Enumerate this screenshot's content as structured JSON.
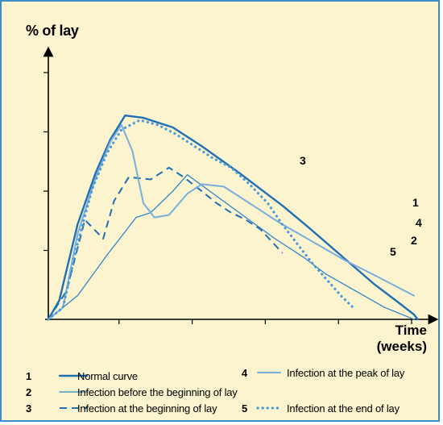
{
  "ylabel": "% of lay",
  "xlabel_line1": "Time",
  "xlabel_line2": "(weeks)",
  "colors": {
    "background": "#fbf4cf",
    "border": "#3a8fc9",
    "dark_blue": "#1f6fb2",
    "light_blue": "#79aede",
    "medium_blue": "#2f86c6",
    "dotted_blue": "#4a9ad6"
  },
  "chart_data": {
    "type": "line",
    "title": "",
    "xlabel": "Time (weeks)",
    "ylabel": "% of lay",
    "xlim": [
      0,
      10
    ],
    "ylim": [
      0,
      100
    ],
    "grid": false,
    "x_ticks": 5,
    "y_ticks": 5,
    "legend_position": "bottom",
    "series": [
      {
        "id": "1",
        "name": "Normal curve",
        "style": "solid-thick",
        "color": "#1f6fb2",
        "points": [
          [
            0,
            0
          ],
          [
            0.3,
            8
          ],
          [
            0.8,
            40
          ],
          [
            1.3,
            62
          ],
          [
            1.7,
            76
          ],
          [
            2.1,
            86
          ],
          [
            2.6,
            85
          ],
          [
            3.4,
            81
          ],
          [
            4.2,
            73
          ],
          [
            5.2,
            62
          ],
          [
            5.8,
            55
          ],
          [
            6.4,
            48
          ],
          [
            7.1,
            39
          ],
          [
            7.7,
            31
          ],
          [
            8.3,
            23
          ],
          [
            8.9,
            15
          ],
          [
            9.5,
            8
          ],
          [
            10,
            2
          ],
          [
            10.1,
            0
          ]
        ]
      },
      {
        "id": "2",
        "name": "Infection before the beginning of lay",
        "style": "solid-thin",
        "color": "#2f86c6",
        "points": [
          [
            0,
            0
          ],
          [
            0.8,
            10
          ],
          [
            1.6,
            27
          ],
          [
            2.4,
            43
          ],
          [
            2.8,
            45
          ],
          [
            3.4,
            54
          ],
          [
            3.8,
            61
          ],
          [
            4.6,
            52
          ],
          [
            5.4,
            43
          ],
          [
            6.2,
            34
          ],
          [
            7.0,
            26
          ],
          [
            7.6,
            19
          ],
          [
            8.4,
            12
          ],
          [
            9.2,
            5
          ],
          [
            10,
            0
          ]
        ]
      },
      {
        "id": "3",
        "name": "Infection at the beginning of lay",
        "style": "dashed",
        "color": "#1f6fb2",
        "points": [
          [
            0,
            0
          ],
          [
            0.5,
            12
          ],
          [
            1,
            42
          ],
          [
            1.5,
            34
          ],
          [
            1.8,
            50
          ],
          [
            2.2,
            60
          ],
          [
            2.8,
            59
          ],
          [
            3.3,
            64
          ],
          [
            3.7,
            60
          ],
          [
            4.2,
            54
          ],
          [
            4.6,
            49
          ],
          [
            5.0,
            45
          ],
          [
            5.4,
            42
          ],
          [
            5.8,
            38
          ],
          [
            6.4,
            28
          ]
        ]
      },
      {
        "id": "4",
        "name": "Infection at the peak of lay",
        "style": "solid-medium",
        "color": "#79aede",
        "points": [
          [
            0,
            0
          ],
          [
            0.4,
            5
          ],
          [
            0.8,
            36
          ],
          [
            1.3,
            60
          ],
          [
            1.7,
            75
          ],
          [
            2.0,
            82
          ],
          [
            2.3,
            71
          ],
          [
            2.6,
            49
          ],
          [
            2.9,
            43
          ],
          [
            3.3,
            44
          ],
          [
            3.8,
            53
          ],
          [
            4.2,
            57
          ],
          [
            4.8,
            56
          ],
          [
            5.5,
            49
          ],
          [
            6.3,
            41
          ],
          [
            7.2,
            33
          ],
          [
            8.1,
            25
          ],
          [
            9.0,
            18
          ],
          [
            10.0,
            10
          ]
        ]
      },
      {
        "id": "5",
        "name": "Infection at the end of lay",
        "style": "dotted",
        "color": "#4a9ad6",
        "points": [
          [
            0,
            0
          ],
          [
            0.4,
            5
          ],
          [
            0.8,
            32
          ],
          [
            1.2,
            55
          ],
          [
            1.6,
            70
          ],
          [
            2.0,
            80
          ],
          [
            2.5,
            84
          ],
          [
            3.0,
            82
          ],
          [
            3.5,
            78
          ],
          [
            4.0,
            73
          ],
          [
            4.5,
            68
          ],
          [
            5.0,
            64
          ],
          [
            5.5,
            57
          ],
          [
            6.0,
            49
          ],
          [
            6.4,
            40
          ],
          [
            6.8,
            32
          ],
          [
            7.2,
            24
          ],
          [
            7.6,
            17
          ],
          [
            8.0,
            10
          ],
          [
            8.4,
            4
          ]
        ]
      }
    ]
  },
  "end_labels": [
    "1",
    "4",
    "2",
    "3",
    "5"
  ],
  "legend": [
    {
      "num": "1",
      "text": "Normal curve"
    },
    {
      "num": "2",
      "text": "Infection before the beginning of lay"
    },
    {
      "num": "3",
      "text": "Infection at the beginning of lay"
    },
    {
      "num": "4",
      "text": "Infection at the peak of lay"
    },
    {
      "num": "5",
      "text": "Infection at the end of lay"
    }
  ]
}
